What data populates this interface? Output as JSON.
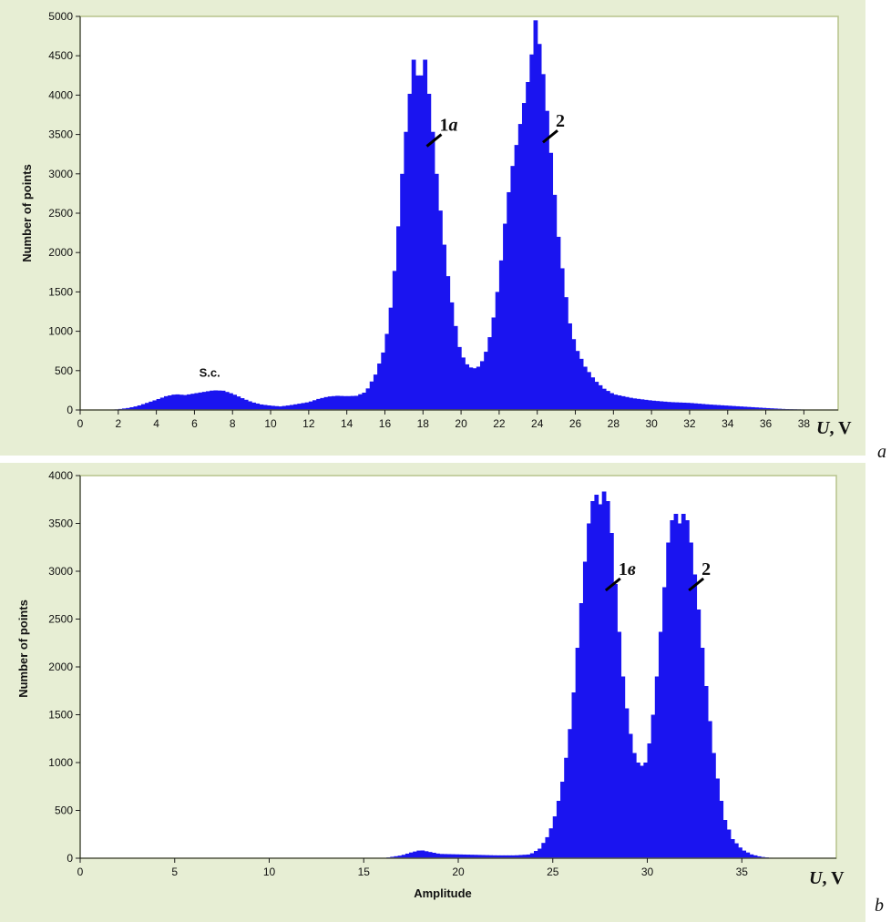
{
  "colors": {
    "bar": "#1a14f0",
    "frame": "#e7eed4",
    "border": "#b7c38c"
  },
  "chart_data": [
    {
      "type": "bar",
      "panel_letter": "a",
      "ylabel": "Number of points",
      "xlabel": "",
      "unit_label": {
        "symbol": "U",
        "rest": ", V"
      },
      "xlim": [
        0,
        39.8
      ],
      "ylim": [
        0,
        5000
      ],
      "x_ticks": [
        0,
        2,
        4,
        6,
        8,
        10,
        12,
        14,
        16,
        18,
        20,
        22,
        24,
        26,
        28,
        30,
        32,
        34,
        36,
        38
      ],
      "y_ticks": [
        0,
        500,
        1000,
        1500,
        2000,
        2500,
        3000,
        3500,
        4000,
        4500,
        5000
      ],
      "annotations": [
        {
          "text_main": "1",
          "text_italic": "a",
          "x": 18.2,
          "y": 3350
        },
        {
          "text_main": "2",
          "text_italic": "",
          "x": 24.3,
          "y": 3400
        },
        {
          "text_main": "S.c.",
          "text_italic": "",
          "x": 6.8,
          "y": 420
        }
      ],
      "series": [
        {
          "points": [
            [
              0,
              0
            ],
            [
              1.5,
              0
            ],
            [
              2,
              10
            ],
            [
              2.5,
              25
            ],
            [
              3,
              50
            ],
            [
              3.5,
              90
            ],
            [
              4,
              130
            ],
            [
              4.5,
              175
            ],
            [
              5,
              200
            ],
            [
              5.5,
              190
            ],
            [
              6,
              210
            ],
            [
              6.5,
              230
            ],
            [
              7,
              250
            ],
            [
              7.5,
              245
            ],
            [
              8,
              205
            ],
            [
              8.5,
              150
            ],
            [
              9,
              100
            ],
            [
              9.5,
              70
            ],
            [
              10,
              55
            ],
            [
              10.5,
              45
            ],
            [
              11,
              60
            ],
            [
              11.5,
              80
            ],
            [
              12,
              100
            ],
            [
              12.5,
              140
            ],
            [
              13,
              170
            ],
            [
              13.5,
              180
            ],
            [
              14,
              175
            ],
            [
              14.5,
              180
            ],
            [
              15,
              230
            ],
            [
              15.5,
              450
            ],
            [
              16,
              800
            ],
            [
              16.3,
              1300
            ],
            [
              16.6,
              2000
            ],
            [
              16.9,
              3000
            ],
            [
              17.2,
              3800
            ],
            [
              17.5,
              4450
            ],
            [
              17.8,
              4150
            ],
            [
              18.1,
              4450
            ],
            [
              18.4,
              3800
            ],
            [
              18.7,
              3000
            ],
            [
              19,
              2300
            ],
            [
              19.3,
              1700
            ],
            [
              19.6,
              1200
            ],
            [
              19.9,
              800
            ],
            [
              20.2,
              600
            ],
            [
              20.6,
              520
            ],
            [
              21,
              560
            ],
            [
              21.4,
              800
            ],
            [
              21.8,
              1300
            ],
            [
              22.1,
              1900
            ],
            [
              22.4,
              2600
            ],
            [
              22.7,
              3100
            ],
            [
              23,
              3500
            ],
            [
              23.3,
              3900
            ],
            [
              23.6,
              4300
            ],
            [
              23.9,
              4950
            ],
            [
              24.2,
              4500
            ],
            [
              24.5,
              3800
            ],
            [
              24.8,
              3000
            ],
            [
              25.1,
              2200
            ],
            [
              25.4,
              1600
            ],
            [
              25.7,
              1100
            ],
            [
              26,
              800
            ],
            [
              26.5,
              550
            ],
            [
              27,
              380
            ],
            [
              27.5,
              270
            ],
            [
              28,
              200
            ],
            [
              29,
              150
            ],
            [
              30,
              120
            ],
            [
              31,
              100
            ],
            [
              32,
              90
            ],
            [
              33,
              70
            ],
            [
              34,
              55
            ],
            [
              35,
              40
            ],
            [
              36,
              25
            ],
            [
              37,
              12
            ],
            [
              38,
              6
            ],
            [
              38.5,
              0
            ],
            [
              39.8,
              0
            ]
          ]
        }
      ]
    },
    {
      "type": "bar",
      "panel_letter": "b",
      "ylabel": "Number of points",
      "xlabel": "Amplitude",
      "unit_label": {
        "symbol": "U",
        "rest": ", V"
      },
      "xlim": [
        0,
        40
      ],
      "ylim": [
        0,
        4000
      ],
      "x_ticks": [
        0,
        5,
        10,
        15,
        20,
        25,
        30,
        35
      ],
      "y_ticks": [
        0,
        500,
        1000,
        1500,
        2000,
        2500,
        3000,
        3500,
        4000
      ],
      "annotations": [
        {
          "text_main": "1",
          "text_italic": "в",
          "x": 27.8,
          "y": 2800
        },
        {
          "text_main": "2",
          "text_italic": "",
          "x": 32.2,
          "y": 2800
        }
      ],
      "series": [
        {
          "points": [
            [
              0,
              0
            ],
            [
              16,
              0
            ],
            [
              16.5,
              15
            ],
            [
              17,
              30
            ],
            [
              17.5,
              60
            ],
            [
              18,
              85
            ],
            [
              18.5,
              65
            ],
            [
              19,
              45
            ],
            [
              20,
              40
            ],
            [
              21,
              35
            ],
            [
              22,
              30
            ],
            [
              23,
              30
            ],
            [
              23.8,
              40
            ],
            [
              24.3,
              100
            ],
            [
              24.8,
              250
            ],
            [
              25.2,
              500
            ],
            [
              25.6,
              900
            ],
            [
              26,
              1500
            ],
            [
              26.3,
              2200
            ],
            [
              26.6,
              2900
            ],
            [
              26.9,
              3500
            ],
            [
              27.2,
              3850
            ],
            [
              27.5,
              3700
            ],
            [
              27.8,
              3900
            ],
            [
              28.1,
              3400
            ],
            [
              28.4,
              2600
            ],
            [
              28.7,
              1900
            ],
            [
              29,
              1400
            ],
            [
              29.3,
              1100
            ],
            [
              29.6,
              950
            ],
            [
              29.9,
              1000
            ],
            [
              30.2,
              1300
            ],
            [
              30.5,
              1900
            ],
            [
              30.8,
              2600
            ],
            [
              31.1,
              3300
            ],
            [
              31.4,
              3650
            ],
            [
              31.7,
              3500
            ],
            [
              32,
              3650
            ],
            [
              32.3,
              3300
            ],
            [
              32.6,
              2800
            ],
            [
              32.9,
              2200
            ],
            [
              33.2,
              1600
            ],
            [
              33.5,
              1100
            ],
            [
              33.8,
              700
            ],
            [
              34.1,
              400
            ],
            [
              34.5,
              200
            ],
            [
              35,
              90
            ],
            [
              35.5,
              40
            ],
            [
              36,
              15
            ],
            [
              36.5,
              5
            ],
            [
              37,
              0
            ],
            [
              40,
              0
            ]
          ]
        }
      ]
    }
  ]
}
